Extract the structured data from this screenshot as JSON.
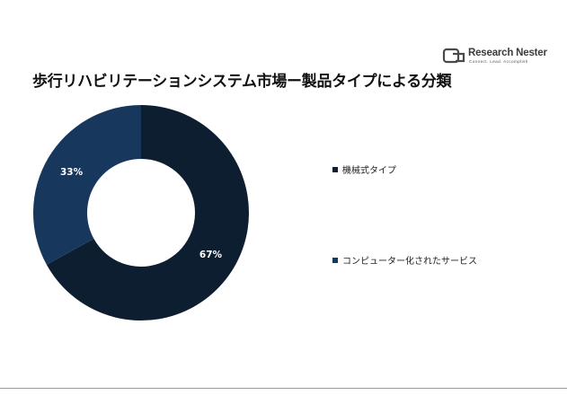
{
  "logo": {
    "name": "Research Nester",
    "tagline": "Connect. Lead. Accomplish"
  },
  "title": "歩行リハビリテーションシステム市場ー製品タイプによる分類",
  "colors": {
    "segment_1": "#0c1e30",
    "segment_2": "#17385c",
    "label": "#ffffff"
  },
  "chart_data": {
    "type": "pie",
    "style": "donut",
    "title": "歩行リハビリテーションシステム市場ー製品タイプによる分類",
    "categories": [
      "機械式タイプ",
      "コンピューター化されたサービス"
    ],
    "values": [
      67,
      33
    ],
    "data_labels": [
      "67%",
      "33%"
    ],
    "legend_position": "right"
  }
}
